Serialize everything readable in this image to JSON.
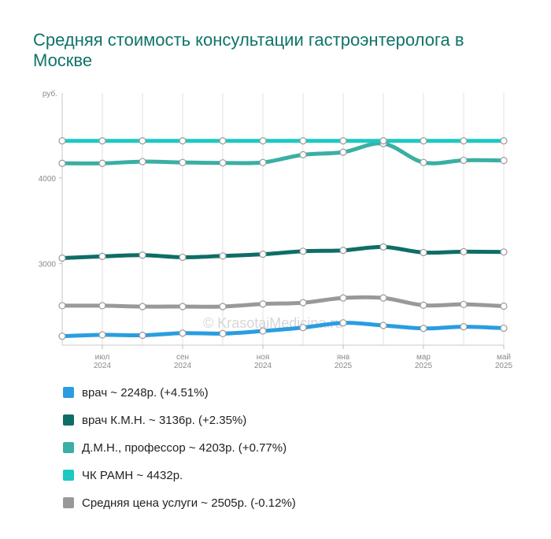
{
  "title": "Средняя стоимость консультации гастроэнтеролога в Москве",
  "watermark": "© KrasotaiMedicina.ru",
  "chart_data": {
    "type": "line",
    "y_unit_label": "руб.",
    "y_ticks": [
      {
        "value": 3000,
        "label": "3000"
      },
      {
        "value": 4000,
        "label": "4000"
      }
    ],
    "ylim": [
      2050,
      4990
    ],
    "x_points": 12,
    "x_ticks": [
      {
        "index": 1,
        "label1": "июл",
        "label2": "2024"
      },
      {
        "index": 3,
        "label1": "сен",
        "label2": "2024"
      },
      {
        "index": 5,
        "label1": "ноя",
        "label2": "2024"
      },
      {
        "index": 7,
        "label1": "янв",
        "label2": "2025"
      },
      {
        "index": 9,
        "label1": "мар",
        "label2": "2025"
      },
      {
        "index": 11,
        "label1": "май",
        "label2": "2025"
      }
    ],
    "grid": true,
    "legend_position": "bottom",
    "series": [
      {
        "name": "Средняя цена услуги",
        "color": "#999999",
        "values": [
          2510,
          2510,
          2500,
          2500,
          2500,
          2530,
          2545,
          2600,
          2600,
          2515,
          2525,
          2505
        ]
      },
      {
        "name": "врач",
        "color": "#2a9de0",
        "values": [
          2155,
          2170,
          2165,
          2190,
          2185,
          2215,
          2255,
          2310,
          2280,
          2245,
          2265,
          2248
        ]
      },
      {
        "name": "врач К.М.Н.",
        "color": "#0e6e66",
        "values": [
          3065,
          3085,
          3100,
          3075,
          3090,
          3110,
          3145,
          3155,
          3195,
          3130,
          3140,
          3136
        ]
      },
      {
        "name": "Д.М.Н., профессор",
        "color": "#3aafa4",
        "values": [
          4170,
          4170,
          4190,
          4180,
          4175,
          4180,
          4270,
          4300,
          4400,
          4180,
          4205,
          4203
        ]
      },
      {
        "name": "ЧК РАМН",
        "color": "#1ec8c2",
        "values": [
          4432,
          4432,
          4432,
          4432,
          4432,
          4432,
          4432,
          4432,
          4432,
          4432,
          4432,
          4432
        ]
      }
    ]
  },
  "legend": [
    {
      "color": "#2a9de0",
      "label": "врач ~ 2248р. (+4.51%)"
    },
    {
      "color": "#0e6e66",
      "label": "врач К.М.Н. ~ 3136р. (+2.35%)"
    },
    {
      "color": "#3aafa4",
      "label": "Д.М.Н., профессор ~ 4203р. (+0.77%)"
    },
    {
      "color": "#1ec8c2",
      "label": "ЧК РАМН ~ 4432р."
    },
    {
      "color": "#999999",
      "label": "Средняя цена услуги ~ 2505р. (-0.12%)"
    }
  ]
}
